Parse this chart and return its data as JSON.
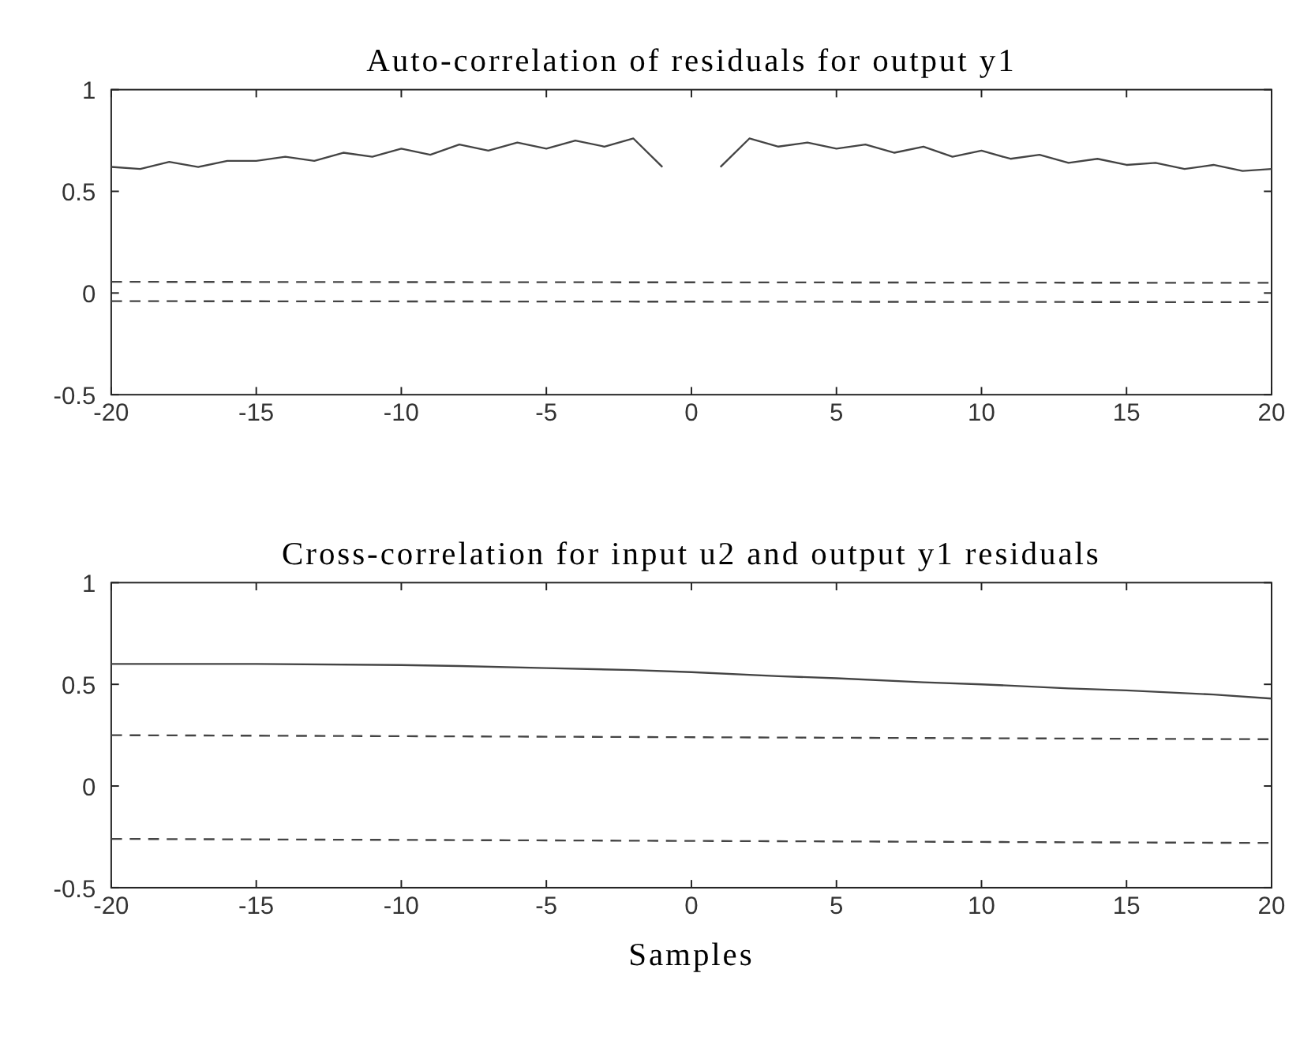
{
  "chart_data": [
    {
      "type": "line",
      "title": "Auto-correlation of residuals for output y1",
      "xlim": [
        -20,
        20
      ],
      "ylim": [
        -0.5,
        1
      ],
      "xticks": [
        -20,
        -15,
        -10,
        -5,
        0,
        5,
        10,
        15,
        20
      ],
      "yticks": [
        -0.5,
        0,
        0.5,
        1
      ],
      "series": [
        {
          "color": "#444444",
          "line_style": "solid",
          "x": [
            -20,
            -19,
            -18,
            -17,
            -16,
            -15,
            -14,
            -13,
            -12,
            -11,
            -10,
            -9,
            -8,
            -7,
            -6,
            -5,
            -4,
            -3,
            -2,
            -1
          ],
          "values": [
            0.62,
            0.61,
            0.645,
            0.62,
            0.65,
            0.65,
            0.67,
            0.65,
            0.69,
            0.67,
            0.71,
            0.68,
            0.73,
            0.7,
            0.74,
            0.71,
            0.75,
            0.72,
            0.76,
            0.62
          ]
        },
        {
          "color": "#444444",
          "line_style": "solid",
          "x": [
            1,
            2,
            3,
            4,
            5,
            6,
            7,
            8,
            9,
            10,
            11,
            12,
            13,
            14,
            15,
            16,
            17,
            18,
            19,
            20
          ],
          "values": [
            0.62,
            0.76,
            0.72,
            0.74,
            0.71,
            0.73,
            0.69,
            0.72,
            0.67,
            0.7,
            0.66,
            0.68,
            0.64,
            0.66,
            0.63,
            0.64,
            0.61,
            0.63,
            0.6,
            0.61
          ]
        },
        {
          "color": "#444444",
          "line_style": "dashed",
          "x": [
            -20,
            20
          ],
          "values": [
            0.055,
            0.05
          ]
        },
        {
          "color": "#444444",
          "line_style": "dashed",
          "x": [
            -20,
            20
          ],
          "values": [
            -0.04,
            -0.045
          ]
        }
      ]
    },
    {
      "type": "line",
      "title": "Cross-correlation for input u2 and output y1 residuals",
      "xlabel": "Samples",
      "xlim": [
        -20,
        20
      ],
      "ylim": [
        -0.5,
        1
      ],
      "xticks": [
        -20,
        -15,
        -10,
        -5,
        0,
        5,
        10,
        15,
        20
      ],
      "yticks": [
        -0.5,
        0,
        0.5,
        1
      ],
      "series": [
        {
          "color": "#444444",
          "line_style": "solid",
          "x": [
            -20,
            -15,
            -10,
            -8,
            -5,
            -2,
            0,
            3,
            5,
            8,
            10,
            13,
            15,
            18,
            20
          ],
          "values": [
            0.6,
            0.6,
            0.595,
            0.59,
            0.58,
            0.57,
            0.56,
            0.54,
            0.53,
            0.51,
            0.5,
            0.48,
            0.47,
            0.45,
            0.43
          ]
        },
        {
          "color": "#444444",
          "line_style": "dashed",
          "x": [
            -20,
            20
          ],
          "values": [
            0.25,
            0.23
          ]
        },
        {
          "color": "#444444",
          "line_style": "dashed",
          "x": [
            -20,
            20
          ],
          "values": [
            -0.26,
            -0.28
          ]
        }
      ]
    }
  ]
}
